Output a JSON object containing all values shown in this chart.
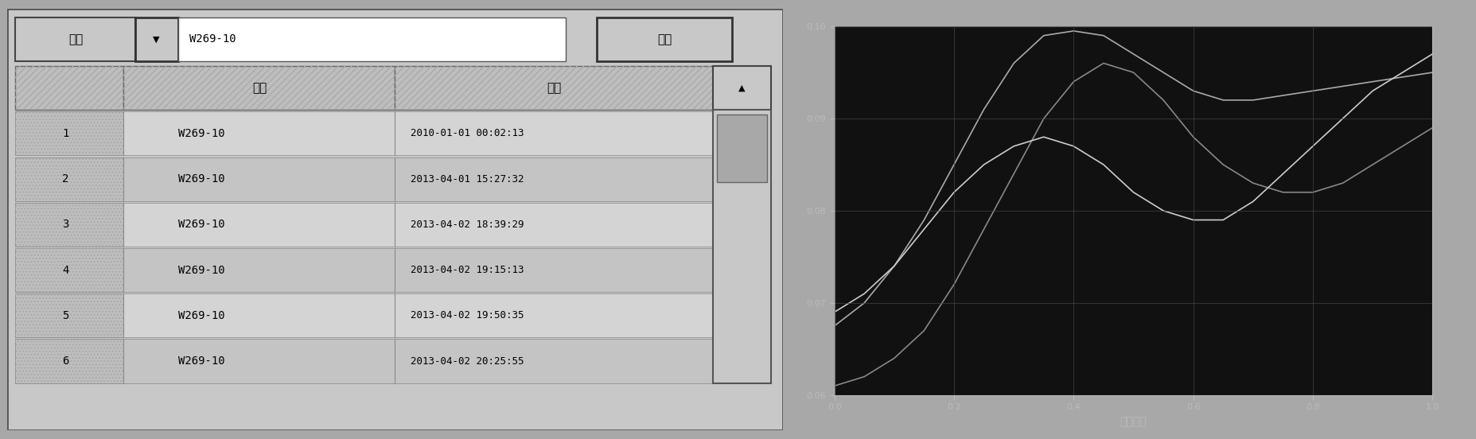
{
  "left_panel": {
    "bg_color": "#c8c8c8",
    "label_well": "井名",
    "well_value": "W269-10",
    "search_btn": "查找",
    "col_headers": [
      "井号",
      "时间"
    ],
    "rows": [
      [
        "1",
        "W269-10",
        "2010-01-01 00:02:13"
      ],
      [
        "2",
        "W269-10",
        "2013-04-01 15:27:32"
      ],
      [
        "3",
        "W269-10",
        "2013-04-02 18:39:29"
      ],
      [
        "4",
        "W269-10",
        "2013-04-02 19:15:13"
      ],
      [
        "5",
        "W269-10",
        "2013-04-02 19:50:35"
      ],
      [
        "6",
        "W269-10",
        "2013-04-02 20:25:55"
      ]
    ]
  },
  "right_panel": {
    "outer_bg": "#909090",
    "plot_bg": "#111111",
    "xlabel": "标准图形",
    "xlim": [
      0.0,
      1.0
    ],
    "ylim": [
      0.06,
      0.1
    ],
    "xticks": [
      0.0,
      0.2,
      0.4,
      0.6,
      0.8,
      1.0
    ],
    "yticks": [
      0.06,
      0.07,
      0.08,
      0.09,
      0.1
    ],
    "xtick_labels": [
      "0.0",
      "0.2",
      "0.4",
      "0.6",
      "0.8",
      "1.0"
    ],
    "ytick_labels": [
      "0.06",
      "0.07",
      "0.08",
      "0.09",
      "0.10"
    ],
    "lines": [
      {
        "x": [
          0.0,
          0.05,
          0.1,
          0.15,
          0.2,
          0.25,
          0.3,
          0.35,
          0.4,
          0.45,
          0.5,
          0.55,
          0.6,
          0.65,
          0.7,
          0.75,
          0.8,
          0.85,
          0.9,
          0.95,
          1.0
        ],
        "y": [
          0.0675,
          0.07,
          0.074,
          0.079,
          0.085,
          0.091,
          0.096,
          0.099,
          0.0995,
          0.099,
          0.097,
          0.095,
          0.093,
          0.092,
          0.092,
          0.0925,
          0.093,
          0.0935,
          0.094,
          0.0945,
          0.095
        ],
        "color": "#aaaaaa",
        "linewidth": 1.2
      },
      {
        "x": [
          0.0,
          0.05,
          0.1,
          0.15,
          0.2,
          0.25,
          0.3,
          0.35,
          0.4,
          0.45,
          0.5,
          0.55,
          0.6,
          0.65,
          0.7,
          0.75,
          0.8,
          0.85,
          0.9,
          0.95,
          1.0
        ],
        "y": [
          0.061,
          0.062,
          0.064,
          0.067,
          0.072,
          0.078,
          0.084,
          0.09,
          0.094,
          0.096,
          0.095,
          0.092,
          0.088,
          0.085,
          0.083,
          0.082,
          0.082,
          0.083,
          0.085,
          0.087,
          0.089
        ],
        "color": "#888888",
        "linewidth": 1.2
      },
      {
        "x": [
          0.0,
          0.05,
          0.1,
          0.15,
          0.2,
          0.25,
          0.3,
          0.35,
          0.4,
          0.45,
          0.5,
          0.55,
          0.6,
          0.65,
          0.7,
          0.75,
          0.8,
          0.85,
          0.9,
          0.95,
          1.0
        ],
        "y": [
          0.069,
          0.071,
          0.074,
          0.078,
          0.082,
          0.085,
          0.087,
          0.088,
          0.087,
          0.085,
          0.082,
          0.08,
          0.079,
          0.079,
          0.081,
          0.084,
          0.087,
          0.09,
          0.093,
          0.095,
          0.097
        ],
        "color": "#cccccc",
        "linewidth": 1.2
      }
    ],
    "grid_color": "#444444",
    "tick_color": "#bbbbbb",
    "label_color": "#bbbbbb",
    "tick_fontsize": 8,
    "label_fontsize": 10
  }
}
